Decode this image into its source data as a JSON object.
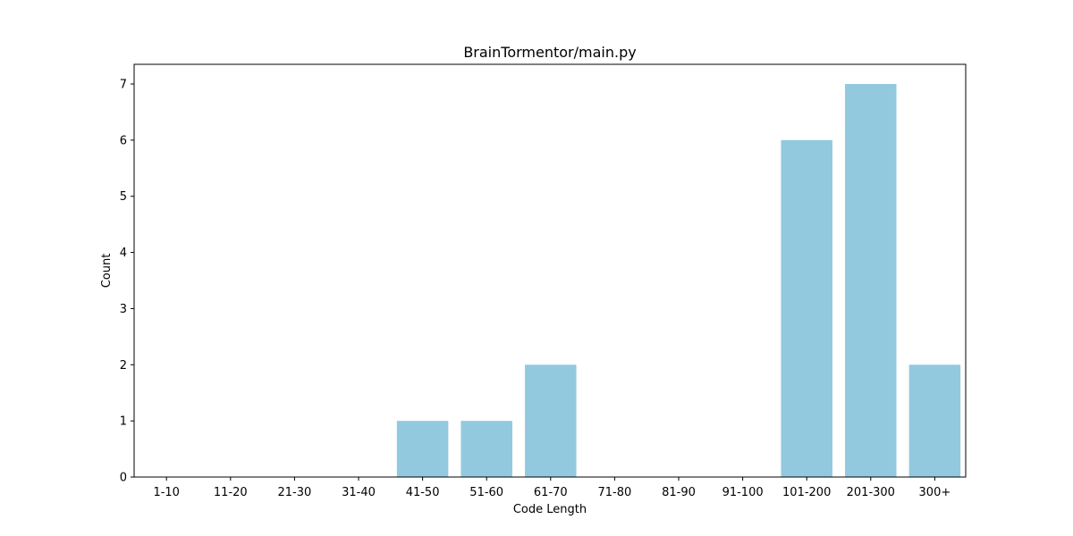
{
  "chart_data": {
    "type": "bar",
    "title": "BrainTormentor/main.py",
    "xlabel": "Code Length",
    "ylabel": "Count",
    "categories": [
      "1-10",
      "11-20",
      "21-30",
      "31-40",
      "41-50",
      "51-60",
      "61-70",
      "71-80",
      "81-90",
      "91-100",
      "101-200",
      "201-300",
      "300+"
    ],
    "values": [
      0,
      0,
      0,
      0,
      1,
      1,
      2,
      0,
      0,
      0,
      6,
      7,
      2
    ],
    "ylim": [
      0,
      7.35
    ],
    "yticks": [
      0,
      1,
      2,
      3,
      4,
      5,
      6,
      7
    ],
    "grid": false,
    "bar_color": "#92C9DE"
  }
}
